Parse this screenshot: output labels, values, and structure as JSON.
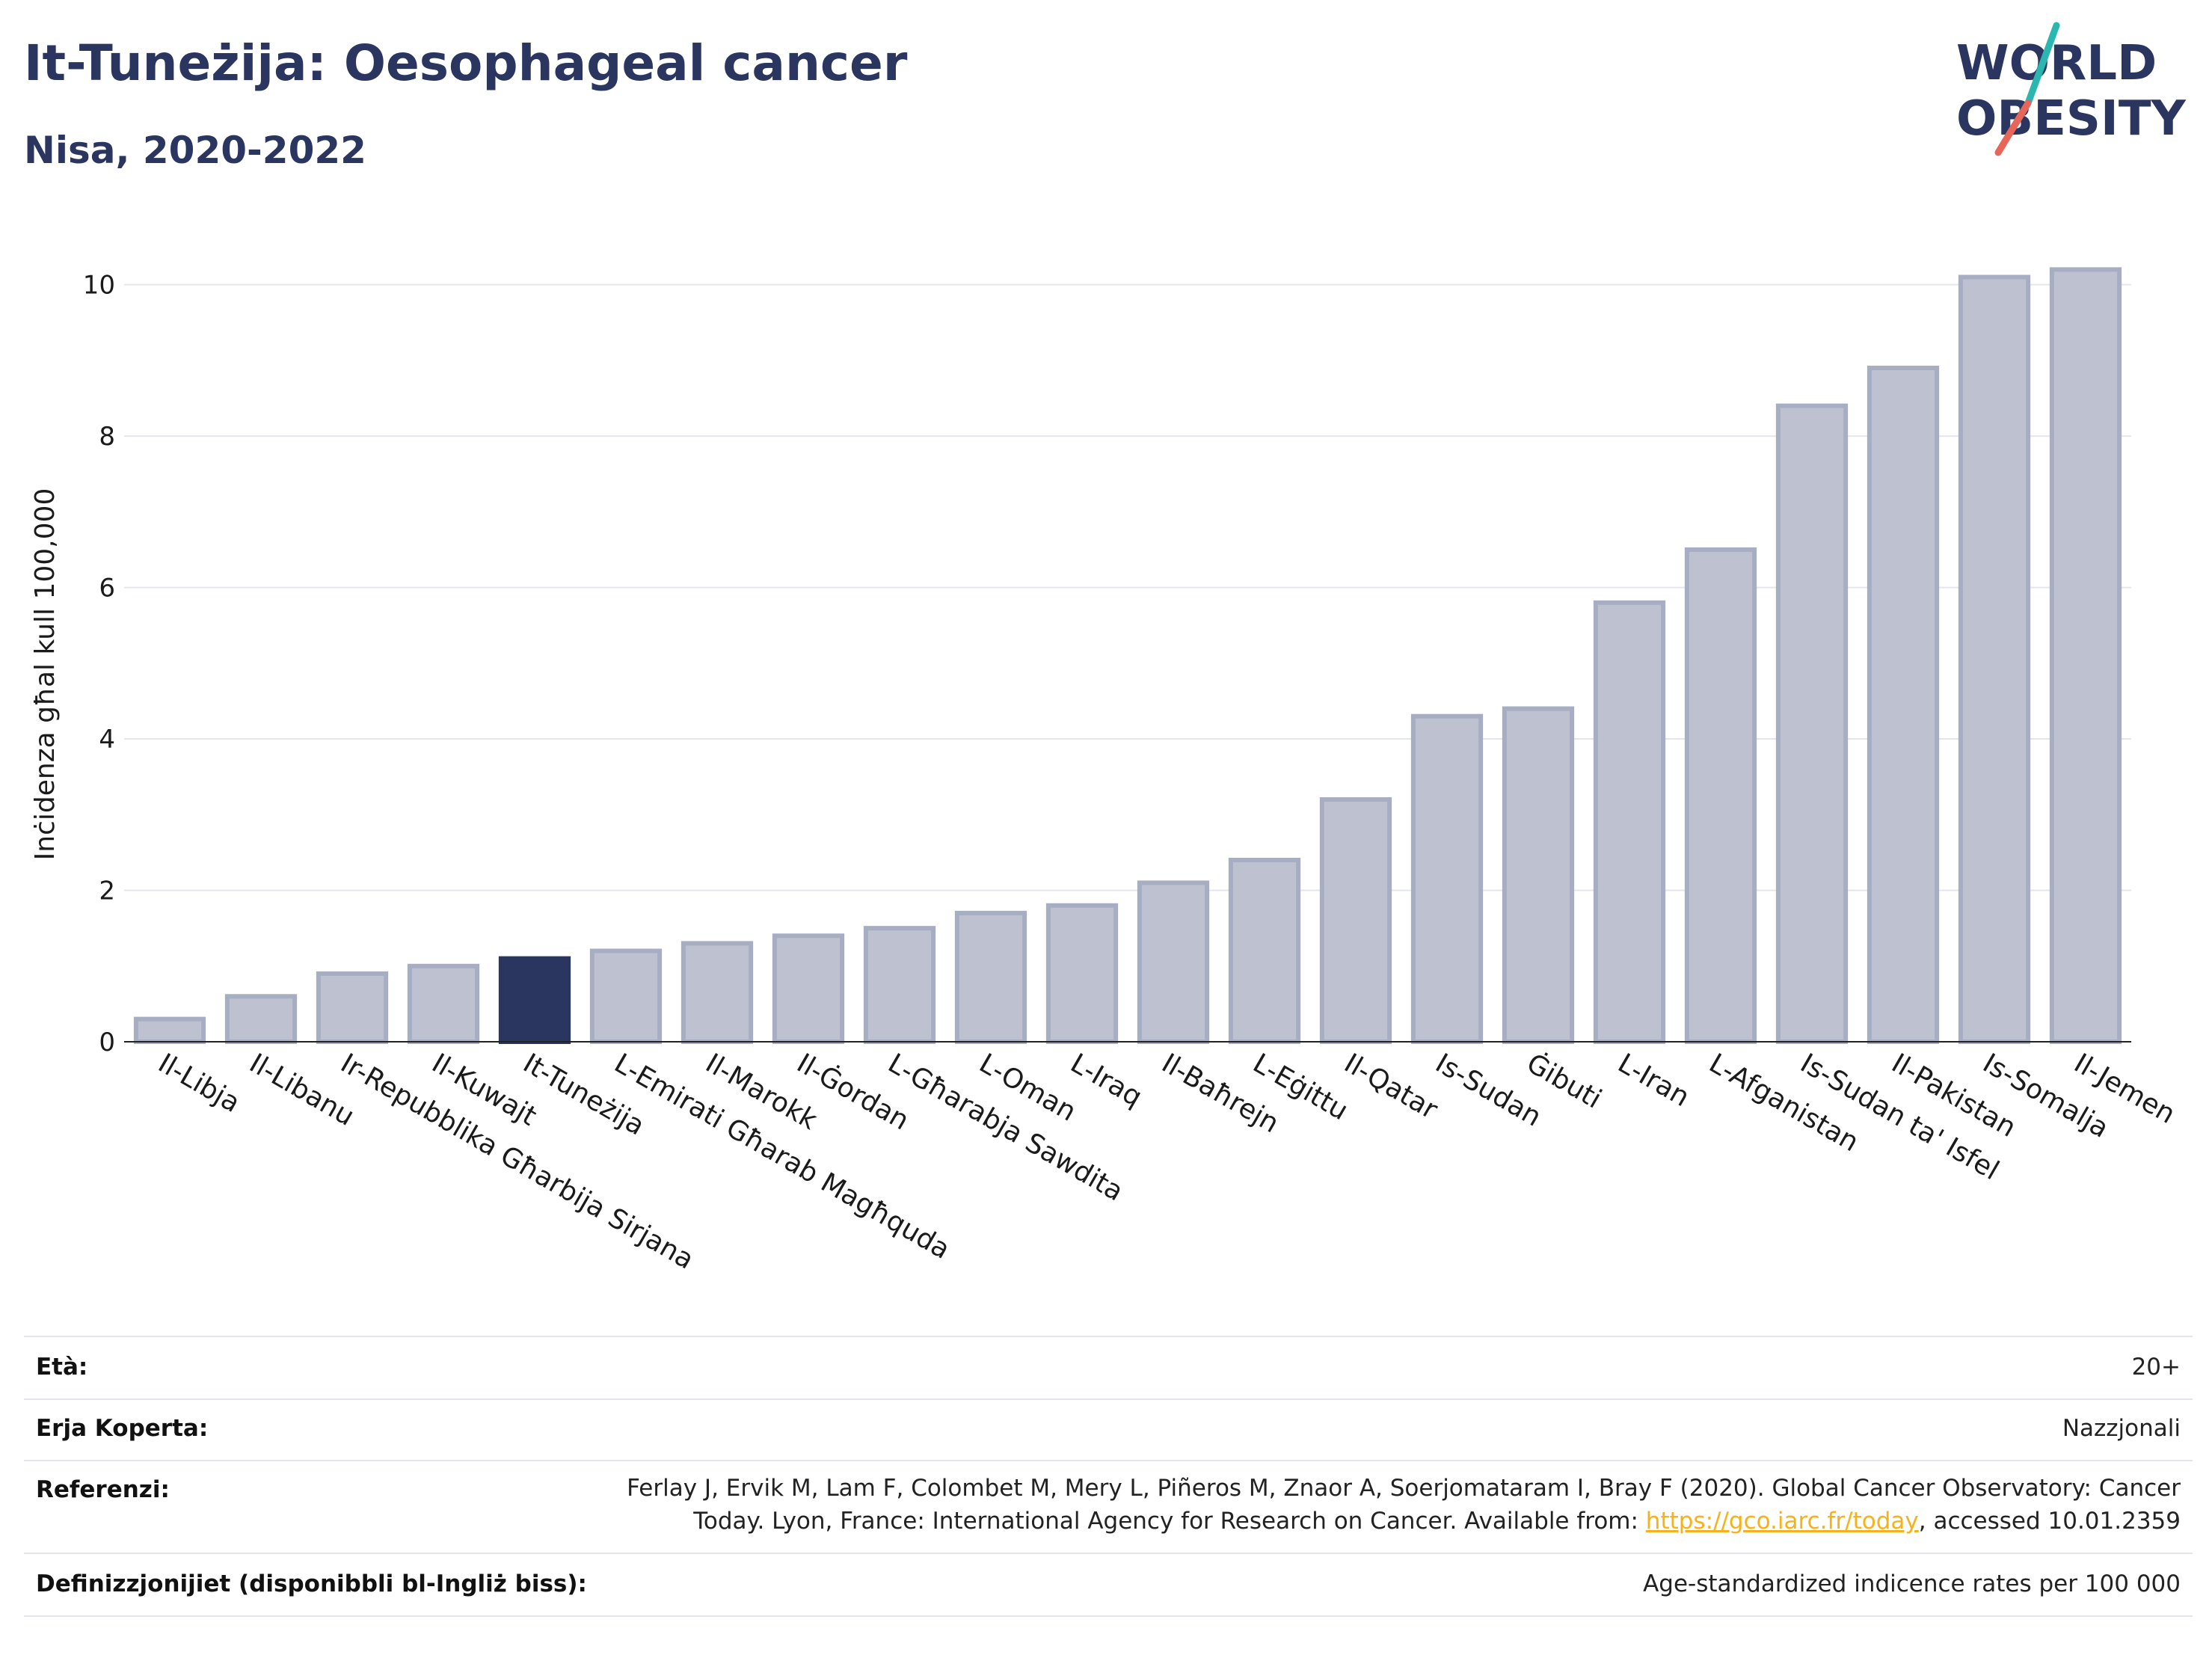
{
  "header": {
    "title": "It-Tuneżija: Oesophageal cancer",
    "subtitle": "Nisa, 2020-2022"
  },
  "logo": {
    "line1": "WORLD",
    "line2": "OBESITY",
    "color_text": "#2a3560",
    "color_slash_top": "#2bb6b0",
    "color_slash_bottom": "#e8655a"
  },
  "chart_data": {
    "type": "bar",
    "ylabel": "Inċidenza għal kull 100,000",
    "ylim": [
      0,
      10.5
    ],
    "yticks": [
      0,
      2,
      4,
      6,
      8,
      10
    ],
    "grid": true,
    "highlight": "It-Tuneżija",
    "colors": {
      "bar": "#bec2d0",
      "bar_edge": "#a7adc3",
      "highlight": "#2a3560",
      "grid": "#e4e6ee"
    },
    "categories": [
      "Il-Libja",
      "Il-Libanu",
      "Ir-Repubblika Għarbija Sirjana",
      "Il-Kuwajt",
      "It-Tuneżija",
      "L-Emirati Għarab Magħquda",
      "Il-Marokk",
      "Il-Ġordan",
      "L-Għarabja Sawdita",
      "L-Oman",
      "L-Iraq",
      "Il-Baħrejn",
      "L-Eġittu",
      "Il-Qatar",
      "Is-Sudan",
      "Ġibuti",
      "L-Iran",
      "L-Afganistan",
      "Is-Sudan ta' Isfel",
      "Il-Pakistan",
      "Is-Somalja",
      "Il-Jemen"
    ],
    "values": [
      0.3,
      0.6,
      0.9,
      1.0,
      1.1,
      1.2,
      1.3,
      1.4,
      1.5,
      1.7,
      1.8,
      2.1,
      2.4,
      3.2,
      4.3,
      4.4,
      5.8,
      6.5,
      8.4,
      8.9,
      10.1,
      10.2
    ]
  },
  "footer": {
    "age_label": "Età:",
    "age_value": "20+",
    "area_label": "Erja Koperta:",
    "area_value": "Nazzjonali",
    "ref_label": "Referenzi:",
    "ref_line1": "Ferlay J, Ervik M, Lam F, Colombet M, Mery L, Piñeros M, Znaor A, Soerjomataram I, Bray F (2020). Global Cancer Observatory: Cancer",
    "ref_line2_pre": "Today. Lyon, France: International Agency for Research on Cancer. Available from: ",
    "ref_link": "https://gco.iarc.fr/today",
    "ref_line2_post": ", accessed 10.01.2359",
    "def_label": "Definizzjonijiet (disponibbli bl-Ingliż biss):",
    "def_value": "Age-standardized indicence rates per 100 000"
  }
}
